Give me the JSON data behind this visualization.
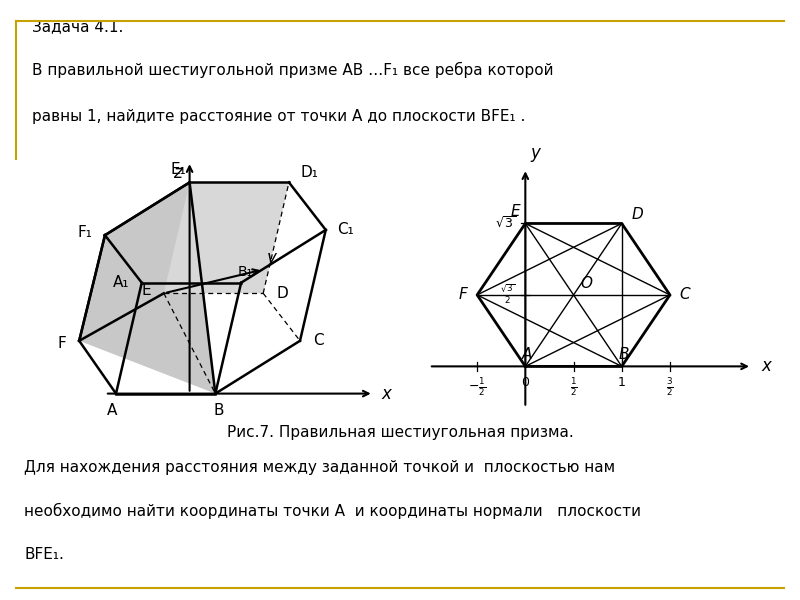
{
  "title_line1": "Задача 4.1.",
  "title_line2": "В правильной шестиугольной призме АВ …F₁ все ребра которой",
  "title_line3": "равны 1, найдите расстояние от точки А до плоскости ВFE₁ .",
  "fig_caption": "Рис.7. Правильная шестиугольная призма.",
  "bottom_line1": "Для нахождения расстояния между заданной точкой и  плоскостью нам",
  "bottom_line2": "необходимо найти координаты точки А  и координаты нормали   плоскости",
  "bottom_line3": "ВFE₁.",
  "bg_color": "#ffffff",
  "box_border_color": "#c8a000",
  "text_color": "#000000",
  "font_size": 11
}
